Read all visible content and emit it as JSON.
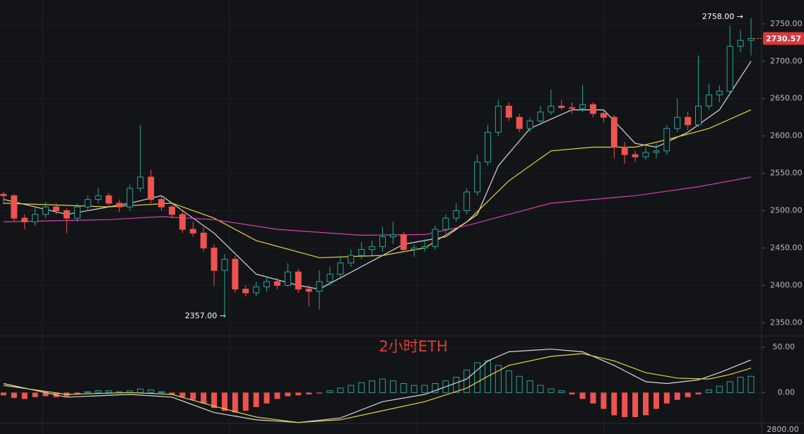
{
  "chart_data": {
    "type": "candlestick",
    "title": "2小时ETH",
    "up_color": "#26a69a",
    "down_color": "#ef5350",
    "ylim": [
      2338,
      2782
    ],
    "yticks": [
      {
        "value": 2350,
        "label": "2350.00"
      },
      {
        "value": 2400,
        "label": "2400.00"
      },
      {
        "value": 2450,
        "label": "2450.00"
      },
      {
        "value": 2500,
        "label": "2500.00"
      },
      {
        "value": 2550,
        "label": "2550.00"
      },
      {
        "value": 2600,
        "label": "2600.00"
      },
      {
        "value": 2650,
        "label": "2650.00"
      },
      {
        "value": 2700,
        "label": "2700.00"
      },
      {
        "value": 2750,
        "label": "2750.00"
      }
    ],
    "grid": true,
    "high_label": "2758.00 →",
    "low_label": "2357.00 →",
    "last_price": "2730.57",
    "candles": [
      [
        2522,
        2525,
        2508,
        2520
      ],
      [
        2520,
        2522,
        2485,
        2490
      ],
      [
        2490,
        2495,
        2475,
        2485
      ],
      [
        2485,
        2505,
        2480,
        2495
      ],
      [
        2495,
        2512,
        2490,
        2505
      ],
      [
        2505,
        2510,
        2495,
        2500
      ],
      [
        2500,
        2503,
        2470,
        2490
      ],
      [
        2490,
        2510,
        2485,
        2505
      ],
      [
        2505,
        2520,
        2500,
        2515
      ],
      [
        2515,
        2530,
        2510,
        2520
      ],
      [
        2520,
        2524,
        2505,
        2510
      ],
      [
        2510,
        2515,
        2498,
        2505
      ],
      [
        2505,
        2535,
        2500,
        2530
      ],
      [
        2530,
        2615,
        2525,
        2545
      ],
      [
        2545,
        2555,
        2510,
        2515
      ],
      [
        2515,
        2520,
        2500,
        2505
      ],
      [
        2505,
        2508,
        2490,
        2495
      ],
      [
        2495,
        2500,
        2470,
        2475
      ],
      [
        2475,
        2485,
        2465,
        2470
      ],
      [
        2470,
        2478,
        2445,
        2450
      ],
      [
        2450,
        2455,
        2400,
        2420
      ],
      [
        2420,
        2442,
        2357,
        2435
      ],
      [
        2435,
        2440,
        2390,
        2395
      ],
      [
        2395,
        2400,
        2385,
        2390
      ],
      [
        2390,
        2405,
        2385,
        2398
      ],
      [
        2398,
        2412,
        2392,
        2405
      ],
      [
        2405,
        2410,
        2395,
        2400
      ],
      [
        2400,
        2430,
        2398,
        2418
      ],
      [
        2418,
        2422,
        2390,
        2395
      ],
      [
        2395,
        2400,
        2372,
        2392
      ],
      [
        2392,
        2420,
        2368,
        2405
      ],
      [
        2405,
        2425,
        2400,
        2415
      ],
      [
        2415,
        2440,
        2410,
        2430
      ],
      [
        2430,
        2448,
        2425,
        2440
      ],
      [
        2440,
        2458,
        2435,
        2448
      ],
      [
        2448,
        2460,
        2440,
        2452
      ],
      [
        2452,
        2478,
        2445,
        2465
      ],
      [
        2465,
        2485,
        2455,
        2468
      ],
      [
        2468,
        2472,
        2445,
        2448
      ],
      [
        2448,
        2455,
        2438,
        2450
      ],
      [
        2450,
        2462,
        2445,
        2452
      ],
      [
        2452,
        2480,
        2448,
        2475
      ],
      [
        2475,
        2495,
        2470,
        2490
      ],
      [
        2490,
        2510,
        2485,
        2500
      ],
      [
        2500,
        2530,
        2495,
        2525
      ],
      [
        2525,
        2575,
        2520,
        2565
      ],
      [
        2565,
        2615,
        2560,
        2605
      ],
      [
        2605,
        2648,
        2600,
        2640
      ],
      [
        2640,
        2645,
        2620,
        2625
      ],
      [
        2625,
        2630,
        2605,
        2610
      ],
      [
        2610,
        2625,
        2605,
        2620
      ],
      [
        2620,
        2640,
        2615,
        2632
      ],
      [
        2632,
        2662,
        2628,
        2640
      ],
      [
        2640,
        2648,
        2635,
        2638
      ],
      [
        2638,
        2645,
        2630,
        2637
      ],
      [
        2637,
        2668,
        2632,
        2642
      ],
      [
        2642,
        2645,
        2625,
        2630
      ],
      [
        2630,
        2636,
        2618,
        2625
      ],
      [
        2625,
        2628,
        2570,
        2585
      ],
      [
        2585,
        2592,
        2563,
        2575
      ],
      [
        2575,
        2580,
        2565,
        2572
      ],
      [
        2572,
        2585,
        2568,
        2578
      ],
      [
        2578,
        2590,
        2570,
        2580
      ],
      [
        2580,
        2615,
        2575,
        2610
      ],
      [
        2610,
        2650,
        2605,
        2625
      ],
      [
        2625,
        2632,
        2608,
        2615
      ],
      [
        2615,
        2708,
        2612,
        2640
      ],
      [
        2640,
        2670,
        2635,
        2655
      ],
      [
        2655,
        2668,
        2645,
        2660
      ],
      [
        2660,
        2748,
        2655,
        2720
      ],
      [
        2720,
        2742,
        2712,
        2728
      ],
      [
        2728,
        2758,
        2708,
        2730.57
      ]
    ],
    "overlays": [
      {
        "color": "#d9d9d9",
        "x": [
          0,
          6,
          12,
          15,
          20,
          24,
          28,
          30,
          34,
          38,
          42,
          45,
          47,
          50,
          54,
          57,
          60,
          62,
          65,
          68,
          71
        ],
        "values": [
          2515,
          2495,
          2510,
          2520,
          2470,
          2415,
          2400,
          2395,
          2425,
          2455,
          2465,
          2495,
          2560,
          2610,
          2635,
          2635,
          2590,
          2585,
          2605,
          2635,
          2700
        ]
      },
      {
        "color": "#e6d33c",
        "x": [
          0,
          10,
          16,
          20,
          24,
          30,
          36,
          40,
          44,
          48,
          52,
          56,
          60,
          63,
          67,
          71
        ],
        "values": [
          2510,
          2505,
          2510,
          2490,
          2460,
          2437,
          2440,
          2450,
          2485,
          2540,
          2580,
          2585,
          2585,
          2595,
          2610,
          2635
        ]
      },
      {
        "color": "#d43fb5",
        "x": [
          0,
          10,
          15,
          20,
          26,
          34,
          40,
          44,
          52,
          60,
          66,
          71
        ],
        "values": [
          2485,
          2488,
          2492,
          2488,
          2475,
          2467,
          2468,
          2480,
          2510,
          2520,
          2532,
          2545
        ]
      }
    ],
    "macd": {
      "ylim": [
        -34,
        61
      ],
      "yticks": [
        {
          "value": 0,
          "label": "0.00"
        },
        {
          "value": 50,
          "label": "50.00"
        }
      ],
      "bottom_label": "2800.00",
      "histogram": [
        -3,
        -6,
        -7,
        -5,
        -4,
        -5,
        -4,
        -2,
        1,
        2,
        2,
        1,
        2,
        4,
        3,
        1,
        -2,
        -5,
        -8,
        -12,
        -17,
        -20,
        -22,
        -20,
        -16,
        -12,
        -7,
        -4,
        -3,
        -2,
        -1,
        2,
        5,
        8,
        11,
        13,
        15,
        13,
        10,
        8,
        8,
        10,
        13,
        17,
        25,
        33,
        35,
        30,
        24,
        18,
        13,
        8,
        4,
        2,
        -2,
        -7,
        -12,
        -18,
        -25,
        -27,
        -27,
        -25,
        -18,
        -12,
        -8,
        -5,
        -2,
        3,
        7,
        12,
        17,
        18
      ],
      "lines": [
        {
          "color": "#d9d9d9",
          "x": [
            0,
            6,
            12,
            16,
            20,
            24,
            28,
            32,
            36,
            40,
            44,
            46,
            48,
            52,
            55,
            58,
            61,
            63,
            66,
            68,
            71
          ],
          "values": [
            10,
            -5,
            -2,
            -5,
            -22,
            -30,
            -33,
            -28,
            -10,
            -2,
            15,
            35,
            45,
            48,
            45,
            30,
            12,
            10,
            14,
            22,
            36
          ]
        },
        {
          "color": "#e6d33c",
          "x": [
            0,
            6,
            12,
            16,
            20,
            24,
            28,
            32,
            36,
            40,
            44,
            46,
            48,
            52,
            55,
            58,
            61,
            64,
            67,
            69,
            71
          ],
          "values": [
            8,
            -2,
            0,
            -2,
            -15,
            -27,
            -33,
            -30,
            -20,
            -10,
            5,
            18,
            30,
            40,
            43,
            35,
            22,
            16,
            15,
            20,
            27
          ]
        }
      ]
    }
  }
}
